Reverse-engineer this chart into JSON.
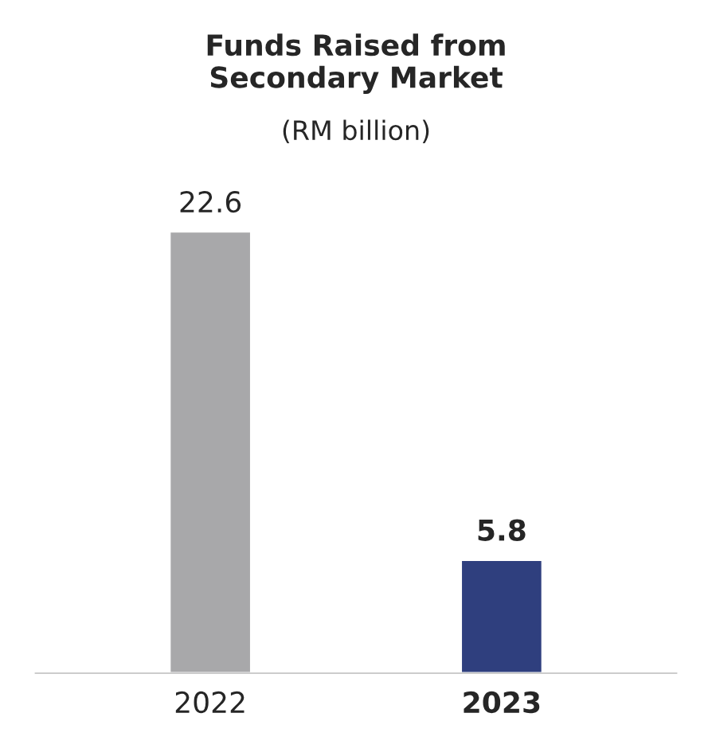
{
  "chart_data": {
    "type": "bar",
    "title": "Funds Raised from\nSecondary Market",
    "subtitle": "(RM billion)",
    "categories": [
      "2022",
      "2023"
    ],
    "values": [
      22.6,
      5.8
    ],
    "colors": [
      "#a8a8aa",
      "#2f3f7e"
    ],
    "data_labels": true,
    "grid": false,
    "legend": false
  }
}
